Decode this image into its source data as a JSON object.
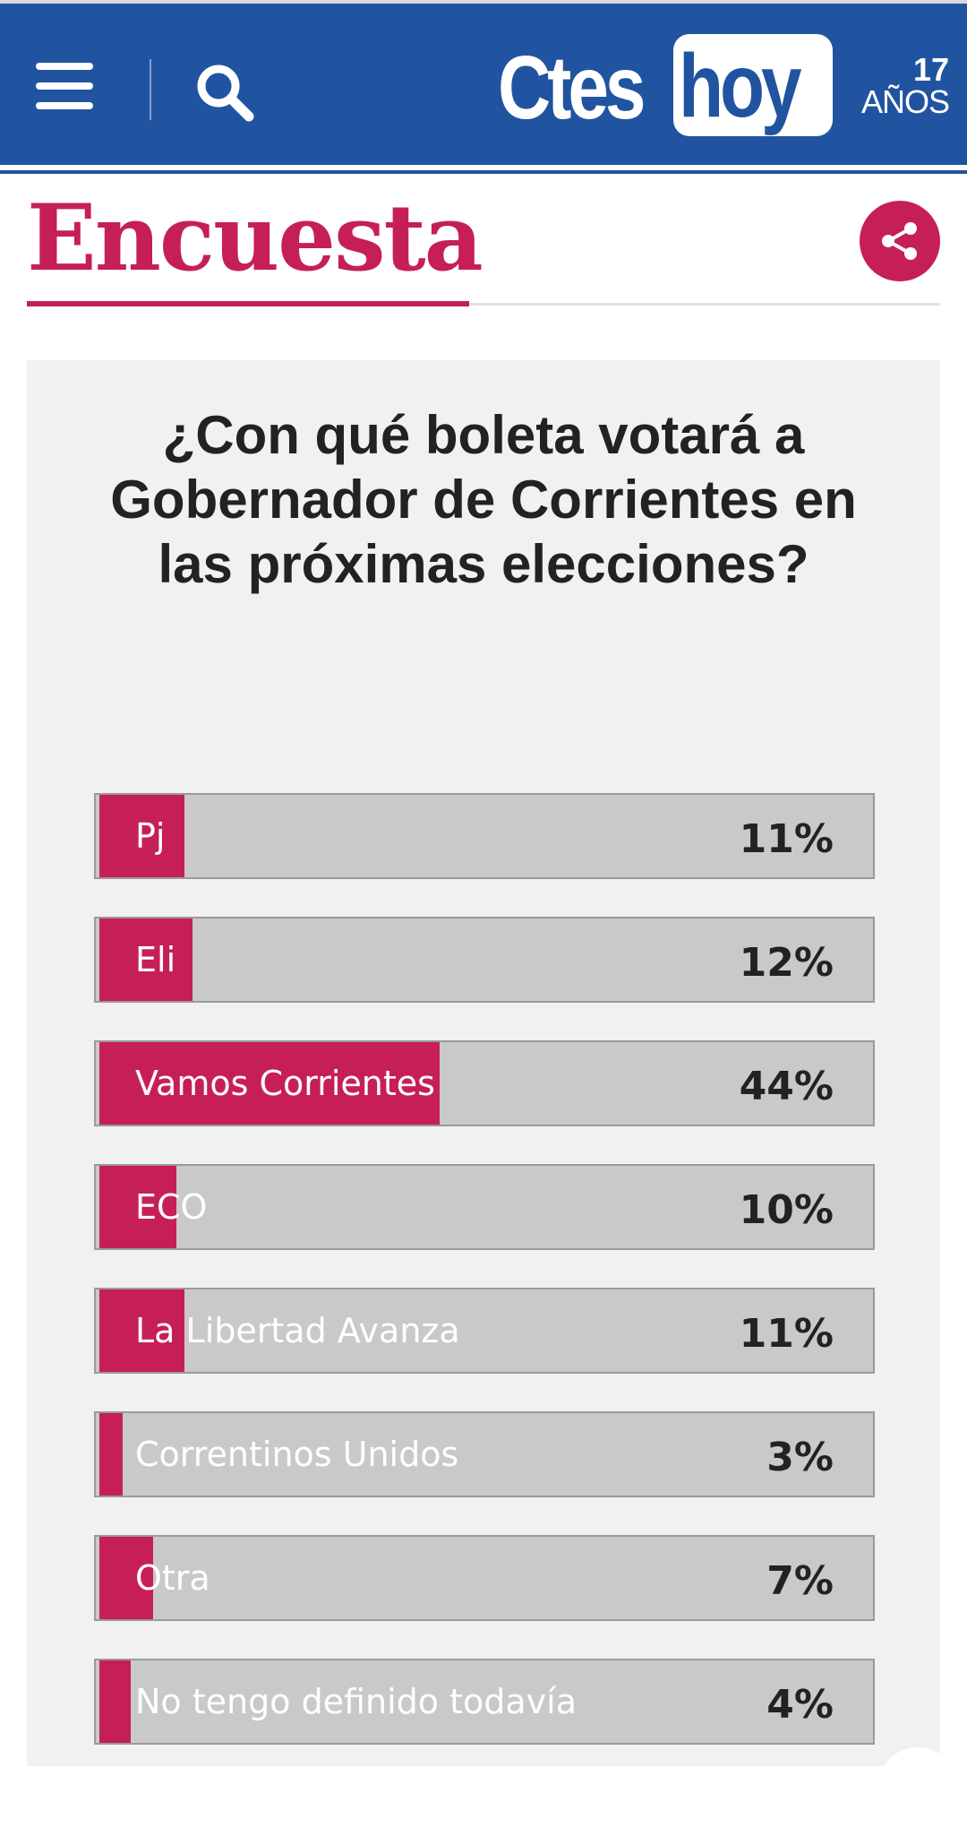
{
  "header": {
    "logo_part1": "Ctes",
    "logo_part2": "hoy",
    "anniversary_number": "17",
    "anniversary_label": "AÑOS",
    "brand_color": "#2154a0"
  },
  "section": {
    "title": "Encuesta",
    "accent_color": "#c61f58"
  },
  "poll": {
    "question": "¿Con qué boleta votará a Gobernador de Corrientes en las próximas elecciones?",
    "options": [
      {
        "label": "Pj",
        "percent_text": "11%",
        "percent": 11
      },
      {
        "label": "Eli",
        "percent_text": "12%",
        "percent": 12
      },
      {
        "label": "Vamos Corrientes",
        "percent_text": "44%",
        "percent": 44
      },
      {
        "label": "ECO",
        "percent_text": "10%",
        "percent": 10
      },
      {
        "label": "La Libertad Avanza",
        "percent_text": "11%",
        "percent": 11
      },
      {
        "label": "Correntinos Unidos",
        "percent_text": "3%",
        "percent": 3
      },
      {
        "label": "Otra",
        "percent_text": "7%",
        "percent": 7
      },
      {
        "label": "No tengo definido todavía",
        "percent_text": "4%",
        "percent": 4
      }
    ]
  },
  "icons": {
    "menu": "menu-icon",
    "search": "search-icon",
    "share": "share-icon"
  }
}
